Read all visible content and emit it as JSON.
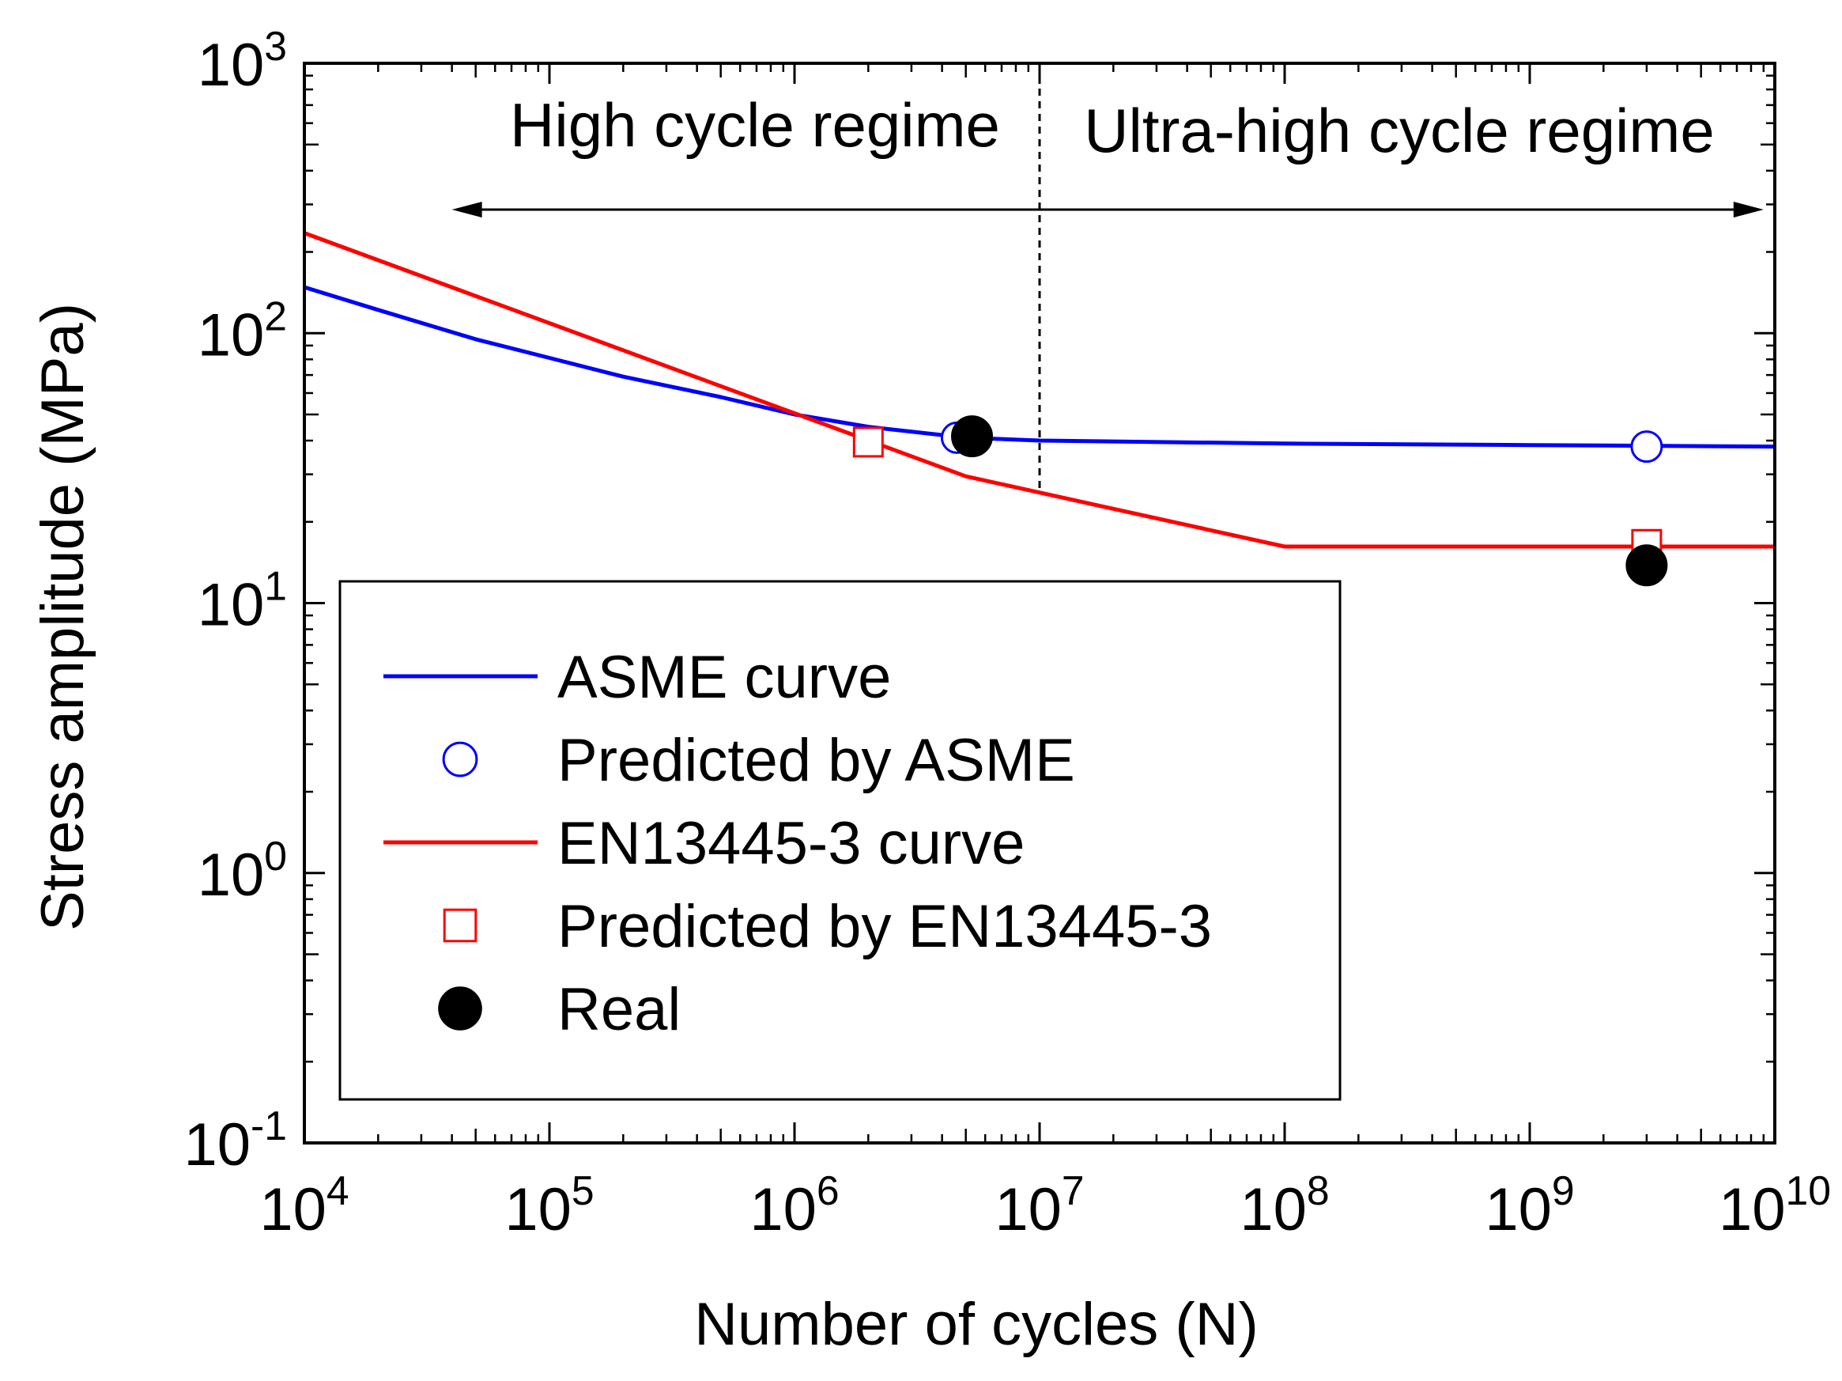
{
  "chart_data": {
    "type": "line",
    "title": "",
    "xlabel": "Number of cycles (N)",
    "ylabel": "Stress amplitude (MPa)",
    "xscale": "log",
    "yscale": "log",
    "xlim": [
      10000,
      10000000000
    ],
    "ylim": [
      0.1,
      1000
    ],
    "x_ticks": [
      {
        "base": "10",
        "exp": "4",
        "value": 10000
      },
      {
        "base": "10",
        "exp": "5",
        "value": 100000
      },
      {
        "base": "10",
        "exp": "6",
        "value": 1000000
      },
      {
        "base": "10",
        "exp": "7",
        "value": 10000000
      },
      {
        "base": "10",
        "exp": "8",
        "value": 100000000
      },
      {
        "base": "10",
        "exp": "9",
        "value": 1000000000
      },
      {
        "base": "10",
        "exp": "10",
        "value": 10000000000
      }
    ],
    "y_ticks": [
      {
        "base": "10",
        "exp": "-1",
        "value": 0.1
      },
      {
        "base": "10",
        "exp": "0",
        "value": 1
      },
      {
        "base": "10",
        "exp": "1",
        "value": 10
      },
      {
        "base": "10",
        "exp": "2",
        "value": 100
      },
      {
        "base": "10",
        "exp": "3",
        "value": 1000
      }
    ],
    "series": [
      {
        "name": "ASME curve",
        "kind": "line",
        "color": "#0000ff",
        "x": [
          10000,
          20000,
          50000,
          100000,
          200000,
          500000,
          1000000,
          2000000,
          5000000,
          10000000,
          100000000,
          1000000000,
          10000000000
        ],
        "y": [
          148,
          122,
          95,
          81,
          69,
          58,
          50,
          45,
          41,
          40,
          39,
          38.5,
          38
        ]
      },
      {
        "name": "Predicted by ASME",
        "kind": "marker",
        "marker": "open-circle",
        "color": "#0000ff",
        "x": [
          4600000,
          3000000000
        ],
        "y": [
          41,
          38
        ]
      },
      {
        "name": "EN13445-3 curve",
        "kind": "line",
        "color": "#ff0000",
        "x": [
          10000,
          5000000,
          100000000,
          10000000000
        ],
        "y": [
          235,
          29.5,
          16.2,
          16.2
        ]
      },
      {
        "name": "Predicted by EN13445-3",
        "kind": "marker",
        "marker": "open-square",
        "color": "#ff0000",
        "x": [
          2000000,
          3000000000
        ],
        "y": [
          39.5,
          16.5
        ]
      },
      {
        "name": "Real",
        "kind": "marker",
        "marker": "filled-circle",
        "color": "#000000",
        "x": [
          5300000,
          3000000000
        ],
        "y": [
          41.5,
          13.8
        ]
      }
    ],
    "annotations": {
      "divider_x": 10000000,
      "arrow_range": [
        40000,
        9000000000
      ],
      "arrow_y": 300,
      "left_label": "High cycle regime",
      "right_label": "Ultra-high cycle regime"
    },
    "legend": {
      "placement": "lower-left",
      "entries": [
        "ASME curve",
        "Predicted by ASME",
        "EN13445-3 curve",
        "Predicted by EN13445-3",
        "Real"
      ]
    }
  }
}
